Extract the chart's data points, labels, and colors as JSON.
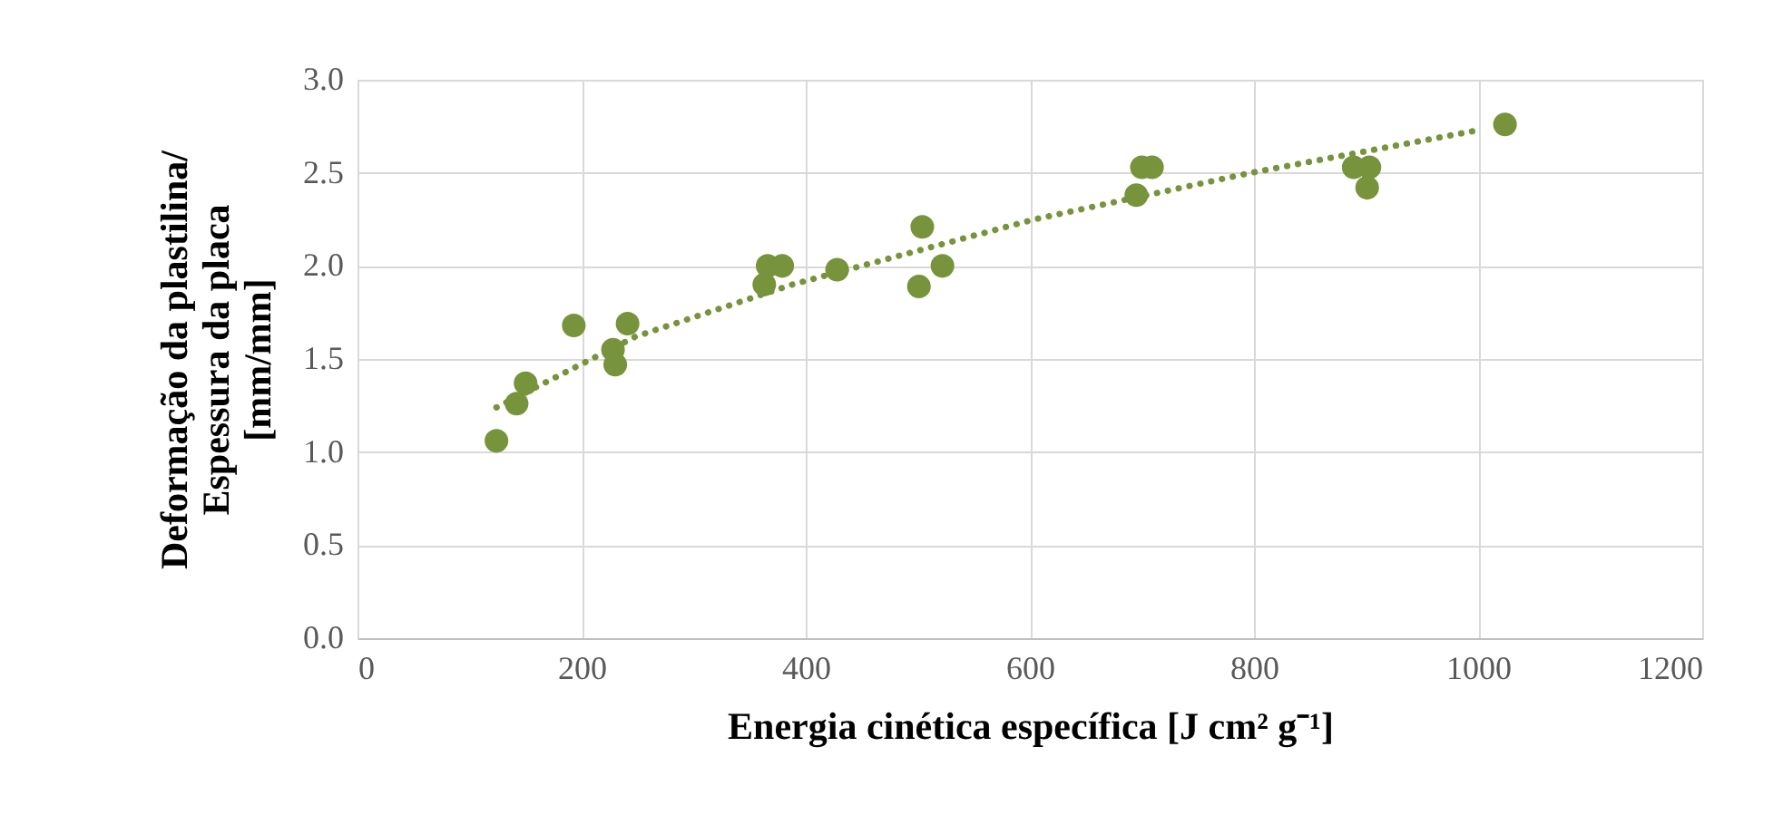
{
  "chart_data": {
    "type": "scatter",
    "xlabel": "Energia cinética específica [J cm² g⁻¹]",
    "ylabel": "Deformação da plastilina/\nEspessura da placa\n[mm/mm]",
    "series": [
      {
        "color": "#77933c",
        "marker": "circle",
        "x": [
          124,
          142,
          150,
          193,
          228,
          230,
          241,
          363,
          366,
          379,
          428,
          501,
          504,
          522,
          695,
          700,
          709,
          889,
          903,
          901,
          1024
        ],
        "values": [
          1.06,
          1.26,
          1.37,
          1.68,
          1.55,
          1.47,
          1.69,
          1.9,
          2.0,
          2.0,
          1.98,
          1.89,
          2.21,
          2.0,
          2.38,
          2.53,
          2.53,
          2.53,
          2.53,
          2.42,
          2.76
        ]
      },
      {
        "type": "line",
        "color": "#77933c",
        "line_style": "dotted",
        "x": [
          124,
          248,
          388,
          604,
          797,
          1001
        ],
        "values": [
          1.24,
          1.62,
          1.9,
          2.25,
          2.5,
          2.73
        ]
      }
    ],
    "xlim": [
      0,
      1200
    ],
    "xticks": [
      0,
      200,
      400,
      600,
      800,
      1000,
      1200
    ],
    "ylim": [
      0,
      3.0
    ],
    "yticks": [
      {
        "value": 0,
        "label": "0.0"
      },
      {
        "value": 0.5,
        "label": "0.5"
      },
      {
        "value": 1,
        "label": "1.0"
      },
      {
        "value": 1.5,
        "label": "1.5"
      },
      {
        "value": 2,
        "label": "2.0"
      },
      {
        "value": 2.5,
        "label": "2.5"
      },
      {
        "value": 3,
        "label": "3.0"
      }
    ],
    "grid": true
  }
}
